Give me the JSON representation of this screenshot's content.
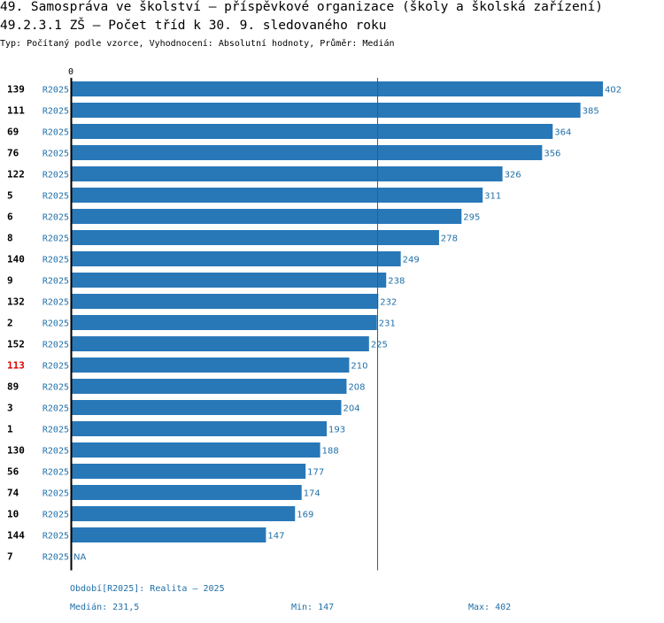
{
  "header": {
    "title": "49. Samospráva ve školství – příspěvkové organizace (školy a školská zařízení)",
    "subtitle": "49.2.3.1 ZŠ – Počet tříd k 30. 9. sledovaného roku",
    "type_line": "Typ: Počítaný podle vzorce, Vyhodnocení: Absolutní hodnoty, Průměr: Medián"
  },
  "colors": {
    "bar": "#2878b8",
    "label": "#1f6fa8",
    "highlight": "#e00000",
    "text": "#000000",
    "median_line": "#1a6a7a"
  },
  "chart_data": {
    "type": "bar",
    "orientation": "horizontal",
    "axis_zero_label": "0",
    "xlim": [
      0,
      402
    ],
    "median": 231.5,
    "highlight_category": "113",
    "categories": [
      "139",
      "111",
      "69",
      "76",
      "122",
      "5",
      "6",
      "8",
      "140",
      "9",
      "132",
      "2",
      "152",
      "113",
      "89",
      "3",
      "1",
      "130",
      "56",
      "74",
      "10",
      "144",
      "7"
    ],
    "period_labels": [
      "R2025",
      "R2025",
      "R2025",
      "R2025",
      "R2025",
      "R2025",
      "R2025",
      "R2025",
      "R2025",
      "R2025",
      "R2025",
      "R2025",
      "R2025",
      "R2025",
      "R2025",
      "R2025",
      "R2025",
      "R2025",
      "R2025",
      "R2025",
      "R2025",
      "R2025",
      "R2025"
    ],
    "values": [
      402,
      385,
      364,
      356,
      326,
      311,
      295,
      278,
      249,
      238,
      232,
      231,
      225,
      210,
      208,
      204,
      193,
      188,
      177,
      174,
      169,
      147,
      null
    ],
    "value_labels": [
      "402",
      "385",
      "364",
      "356",
      "326",
      "311",
      "295",
      "278",
      "249",
      "238",
      "232",
      "231",
      "225",
      "210",
      "208",
      "204",
      "193",
      "188",
      "177",
      "174",
      "169",
      "147",
      "NA"
    ]
  },
  "footer": {
    "period": "Období[R2025]: Realita – 2025",
    "median": "Medián: 231,5",
    "min": "Min: 147",
    "max": "Max: 402"
  }
}
